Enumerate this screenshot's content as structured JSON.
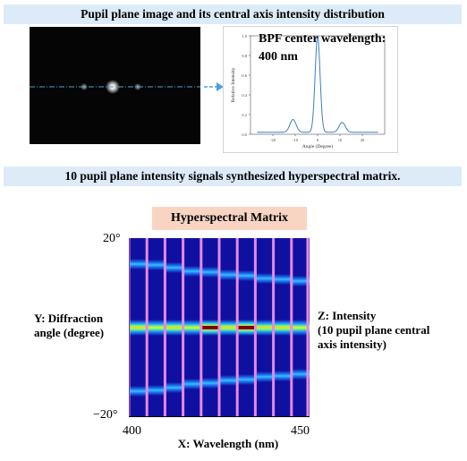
{
  "header": {
    "pupil_banner": "Pupil plane image and its central axis intensity distribution",
    "synth_banner": "10 pupil plane intensity signals synthesized hyperspectral matrix."
  },
  "pupil_plot": {
    "bpf_line1": "BPF center wavelength:",
    "bpf_line2": "400 nm",
    "ylabel": "Relative Intensity",
    "xlabel": "Angle (Degree)",
    "yticks": [
      "1.0",
      "0.8",
      "0.6",
      "0.4",
      "0.2",
      "0.0"
    ],
    "xticks": [
      "-20",
      "-10",
      "0",
      "10",
      "20"
    ]
  },
  "hyperspectral": {
    "title": "Hyperspectral Matrix",
    "y_label_line1": "Y: Diffraction",
    "y_label_line2": "angle (degree)",
    "z_label_line1": "Z: Intensity",
    "z_label_line2": "(10 pupil plane central",
    "z_label_line3": "axis intensity)",
    "y_top": "20°",
    "y_bottom": "−20°",
    "x_left": "400",
    "x_right": "450",
    "x_label": "X: Wavelength (nm)"
  },
  "chart_data": [
    {
      "type": "line",
      "xlabel": "Angle (Degree)",
      "ylabel": "Relative Intensity",
      "xlim": [
        -30,
        30
      ],
      "ylim": [
        0,
        1.0
      ],
      "x_ticks": [
        -20,
        -10,
        0,
        10,
        20
      ],
      "y_ticks": [
        0.0,
        0.2,
        0.4,
        0.6,
        0.8,
        1.0
      ],
      "peaks": [
        {
          "x": -11,
          "y": 0.15
        },
        {
          "x": 0,
          "y": 1.0
        },
        {
          "x": 11,
          "y": 0.12
        }
      ],
      "baseline": 0.02,
      "color": "#3b7fc4"
    },
    {
      "type": "heatmap",
      "x_range": [
        400,
        450
      ],
      "y_range": [
        -20,
        20
      ],
      "columns": 10,
      "separator_color": "#e58ae0",
      "center_intensity": [
        0.75,
        0.7,
        0.75,
        0.72,
        1.0,
        0.8,
        1.0,
        0.8,
        0.75,
        0.72
      ],
      "side_order_angle": [
        -14.2,
        -14.0,
        -13.4,
        -12.6,
        -12.4,
        -11.8,
        -11.6,
        -11.0,
        -10.8,
        -10.4
      ],
      "side_intensity": [
        0.5,
        0.5,
        0.5,
        0.5,
        0.5,
        0.5,
        0.55,
        0.55,
        0.55,
        0.55
      ]
    }
  ]
}
